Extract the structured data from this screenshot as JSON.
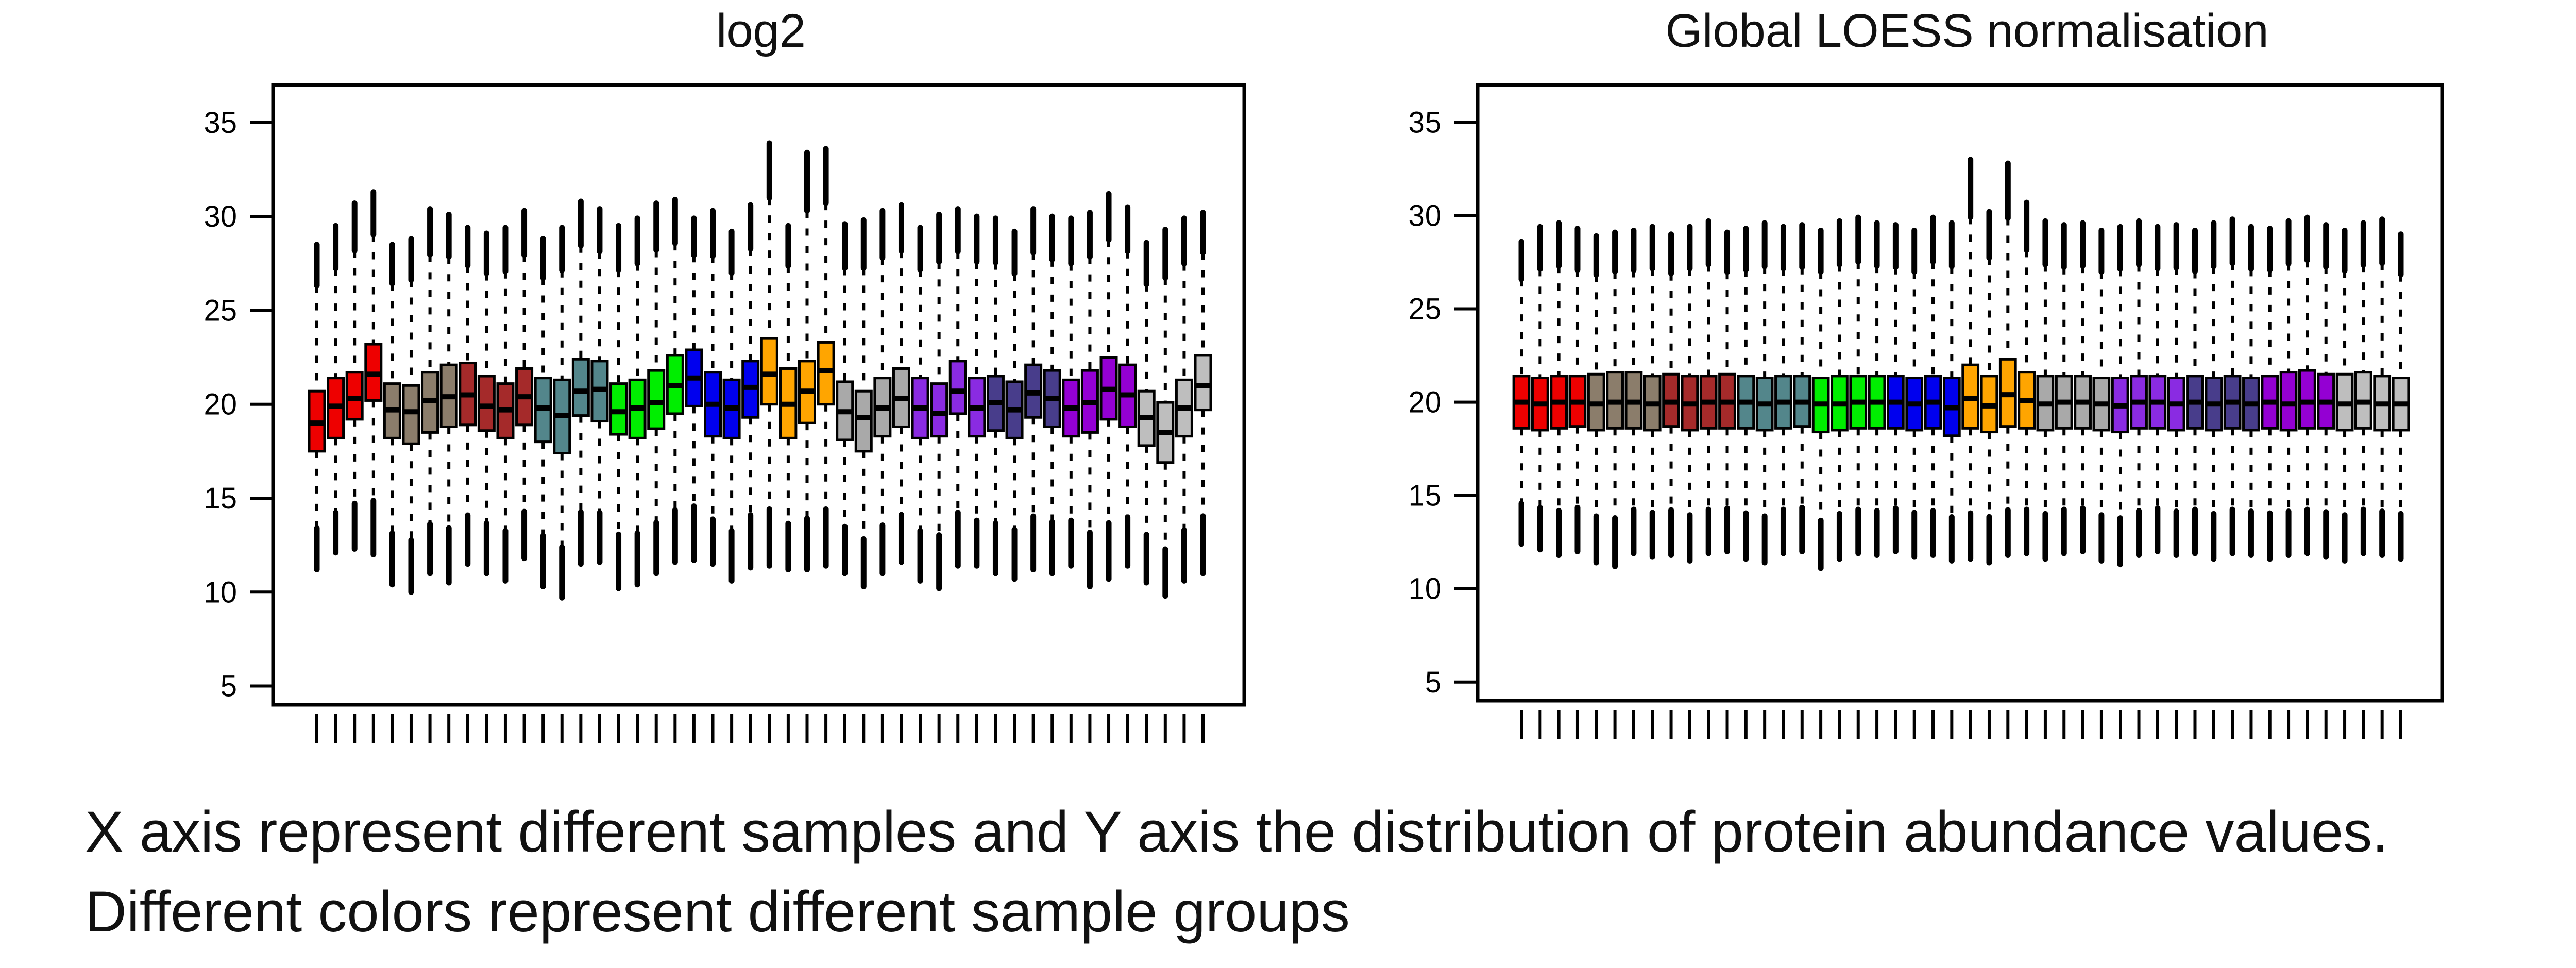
{
  "chart_data": [
    {
      "type": "box",
      "title": "log2",
      "xlabel": "",
      "ylabel": "",
      "ylim": [
        4,
        37
      ],
      "yticks": [
        "5",
        "10",
        "15",
        "20",
        "25",
        "30",
        "35"
      ],
      "grid": false,
      "legend": "none",
      "sample_count": 48,
      "colors": [
        "#ee0000",
        "#ee0000",
        "#ee0000",
        "#ee0000",
        "#8b7d6b",
        "#8b7d6b",
        "#8b7d6b",
        "#8b7d6b",
        "#a52a2a",
        "#a52a2a",
        "#a52a2a",
        "#a52a2a",
        "#53868b",
        "#53868b",
        "#53868b",
        "#53868b",
        "#00ee00",
        "#00ee00",
        "#00ee00",
        "#00ee00",
        "#0000ee",
        "#0000ee",
        "#0000ee",
        "#0000ee",
        "#ffa500",
        "#ffa500",
        "#ffa500",
        "#ffa500",
        "#a9a9a9",
        "#a9a9a9",
        "#a9a9a9",
        "#a9a9a9",
        "#8a2be2",
        "#8a2be2",
        "#8a2be2",
        "#8a2be2",
        "#483d8b",
        "#483d8b",
        "#483d8b",
        "#483d8b",
        "#9400d3",
        "#9400d3",
        "#9400d3",
        "#9400d3",
        "#bebebe",
        "#bebebe",
        "#bebebe",
        "#bebebe"
      ],
      "q1": [
        17.5,
        18.2,
        19.2,
        20.2,
        18.2,
        17.9,
        18.5,
        18.8,
        18.9,
        18.6,
        18.2,
        18.9,
        18.0,
        17.4,
        19.4,
        19.1,
        18.4,
        18.2,
        18.7,
        19.5,
        19.9,
        18.3,
        18.2,
        19.3,
        20.0,
        18.2,
        19.0,
        20.0,
        18.1,
        17.5,
        18.3,
        18.8,
        18.2,
        18.3,
        19.5,
        18.3,
        18.6,
        18.2,
        19.3,
        18.8,
        18.3,
        18.5,
        19.2,
        18.8,
        17.8,
        16.9,
        18.3,
        19.7
      ],
      "median": [
        19.0,
        19.9,
        20.3,
        21.6,
        19.7,
        19.6,
        20.2,
        20.4,
        20.5,
        19.9,
        19.7,
        20.4,
        19.8,
        19.4,
        20.7,
        20.8,
        19.6,
        19.8,
        20.1,
        21.0,
        21.4,
        20.0,
        19.8,
        20.9,
        21.6,
        20.0,
        20.7,
        21.8,
        19.6,
        19.3,
        19.8,
        20.3,
        19.8,
        19.5,
        20.7,
        19.8,
        20.1,
        19.7,
        20.6,
        20.3,
        19.8,
        20.1,
        20.8,
        20.5,
        19.3,
        18.5,
        19.8,
        21.0
      ],
      "q3": [
        20.7,
        21.4,
        21.7,
        23.2,
        21.1,
        21.0,
        21.7,
        22.1,
        22.2,
        21.5,
        21.1,
        21.9,
        21.4,
        21.3,
        22.4,
        22.3,
        21.1,
        21.3,
        21.8,
        22.6,
        22.9,
        21.7,
        21.3,
        22.3,
        23.5,
        21.9,
        22.3,
        23.3,
        21.2,
        20.7,
        21.4,
        21.9,
        21.4,
        21.1,
        22.3,
        21.4,
        21.5,
        21.2,
        22.1,
        21.8,
        21.3,
        21.8,
        22.5,
        22.1,
        20.7,
        20.1,
        21.3,
        22.6
      ],
      "whisker_low": [
        11.2,
        12.1,
        12.3,
        12.0,
        10.4,
        10.0,
        11.0,
        10.5,
        11.5,
        11.0,
        10.6,
        11.8,
        10.3,
        9.7,
        11.5,
        11.6,
        10.2,
        10.4,
        11.0,
        11.6,
        11.7,
        11.5,
        10.6,
        11.3,
        11.4,
        11.2,
        11.2,
        11.4,
        11.0,
        10.3,
        11.0,
        11.6,
        10.6,
        10.2,
        11.4,
        11.4,
        11.0,
        10.7,
        11.2,
        11.0,
        11.4,
        10.3,
        10.7,
        11.4,
        10.5,
        9.8,
        10.6,
        11.0
      ],
      "whisker_high": [
        28.5,
        29.5,
        30.7,
        31.3,
        28.5,
        28.8,
        30.4,
        30.1,
        29.4,
        29.1,
        29.4,
        30.3,
        28.8,
        29.4,
        30.8,
        30.4,
        29.5,
        29.9,
        30.7,
        30.9,
        29.9,
        30.3,
        29.2,
        30.6,
        33.9,
        29.5,
        33.4,
        33.6,
        29.6,
        29.8,
        30.3,
        30.6,
        29.4,
        30.1,
        30.4,
        30.0,
        29.9,
        29.2,
        30.4,
        30.0,
        29.9,
        30.2,
        31.2,
        30.5,
        28.6,
        29.3,
        29.9,
        30.2
      ]
    },
    {
      "type": "box",
      "title": "Global LOESS normalisation",
      "xlabel": "",
      "ylabel": "",
      "ylim": [
        4,
        37
      ],
      "yticks": [
        "5",
        "10",
        "15",
        "20",
        "25",
        "30",
        "35"
      ],
      "grid": false,
      "legend": "none",
      "sample_count": 48,
      "colors": [
        "#ee0000",
        "#ee0000",
        "#ee0000",
        "#ee0000",
        "#8b7d6b",
        "#8b7d6b",
        "#8b7d6b",
        "#8b7d6b",
        "#a52a2a",
        "#a52a2a",
        "#a52a2a",
        "#a52a2a",
        "#53868b",
        "#53868b",
        "#53868b",
        "#53868b",
        "#00ee00",
        "#00ee00",
        "#00ee00",
        "#00ee00",
        "#0000ee",
        "#0000ee",
        "#0000ee",
        "#0000ee",
        "#ffa500",
        "#ffa500",
        "#ffa500",
        "#ffa500",
        "#a9a9a9",
        "#a9a9a9",
        "#a9a9a9",
        "#a9a9a9",
        "#8a2be2",
        "#8a2be2",
        "#8a2be2",
        "#8a2be2",
        "#483d8b",
        "#483d8b",
        "#483d8b",
        "#483d8b",
        "#9400d3",
        "#9400d3",
        "#9400d3",
        "#9400d3",
        "#bebebe",
        "#bebebe",
        "#bebebe",
        "#bebebe"
      ],
      "q1": [
        18.6,
        18.5,
        18.6,
        18.7,
        18.5,
        18.6,
        18.6,
        18.5,
        18.7,
        18.5,
        18.6,
        18.6,
        18.6,
        18.5,
        18.6,
        18.7,
        18.4,
        18.5,
        18.6,
        18.6,
        18.6,
        18.5,
        18.6,
        18.2,
        18.6,
        18.4,
        18.7,
        18.6,
        18.5,
        18.6,
        18.6,
        18.5,
        18.4,
        18.6,
        18.6,
        18.5,
        18.6,
        18.5,
        18.6,
        18.5,
        18.6,
        18.5,
        18.6,
        18.6,
        18.5,
        18.6,
        18.5,
        18.5
      ],
      "median": [
        20.0,
        19.9,
        20.0,
        20.0,
        19.9,
        20.0,
        20.0,
        19.9,
        20.0,
        19.9,
        20.0,
        20.0,
        20.0,
        19.9,
        20.0,
        20.0,
        19.9,
        19.9,
        20.0,
        20.0,
        20.0,
        19.9,
        20.0,
        19.7,
        20.2,
        19.8,
        20.4,
        20.1,
        19.9,
        20.0,
        20.0,
        19.9,
        19.8,
        20.0,
        20.0,
        19.9,
        20.0,
        19.9,
        20.0,
        19.9,
        20.0,
        19.9,
        20.0,
        20.0,
        19.9,
        20.0,
        19.9,
        19.9
      ],
      "q3": [
        21.4,
        21.3,
        21.4,
        21.4,
        21.5,
        21.6,
        21.6,
        21.4,
        21.5,
        21.4,
        21.4,
        21.5,
        21.4,
        21.3,
        21.4,
        21.4,
        21.3,
        21.4,
        21.4,
        21.4,
        21.4,
        21.3,
        21.4,
        21.3,
        22.0,
        21.4,
        22.3,
        21.6,
        21.4,
        21.4,
        21.4,
        21.3,
        21.3,
        21.4,
        21.4,
        21.3,
        21.4,
        21.3,
        21.4,
        21.3,
        21.4,
        21.6,
        21.7,
        21.5,
        21.5,
        21.6,
        21.4,
        21.3
      ],
      "whisker_low": [
        12.4,
        12.1,
        11.8,
        12.0,
        11.4,
        11.2,
        11.9,
        11.7,
        11.8,
        11.5,
        11.9,
        12.0,
        11.6,
        11.4,
        11.9,
        12.0,
        11.1,
        11.6,
        11.9,
        11.8,
        12.0,
        11.7,
        11.8,
        11.5,
        11.6,
        11.4,
        11.8,
        11.9,
        11.6,
        11.9,
        12.0,
        11.5,
        11.3,
        11.8,
        12.0,
        11.8,
        11.9,
        11.6,
        11.9,
        11.8,
        11.6,
        11.8,
        11.9,
        11.7,
        11.5,
        11.9,
        11.8,
        11.6
      ],
      "whisker_high": [
        28.6,
        29.4,
        29.6,
        29.3,
        28.9,
        29.1,
        29.2,
        29.4,
        29.0,
        29.4,
        29.7,
        29.1,
        29.3,
        29.6,
        29.4,
        29.5,
        29.2,
        29.7,
        29.9,
        29.6,
        29.5,
        29.2,
        29.9,
        29.6,
        33.0,
        30.2,
        32.8,
        30.7,
        29.7,
        29.5,
        29.6,
        29.2,
        29.4,
        29.7,
        29.4,
        29.5,
        29.2,
        29.6,
        29.8,
        29.4,
        29.3,
        29.7,
        29.9,
        29.5,
        29.2,
        29.6,
        29.8,
        29.0
      ]
    }
  ],
  "caption": {
    "line1": "X axis represent different samples and Y axis the distribution of protein abundance values.",
    "line2": "Different colors represent different sample groups"
  }
}
